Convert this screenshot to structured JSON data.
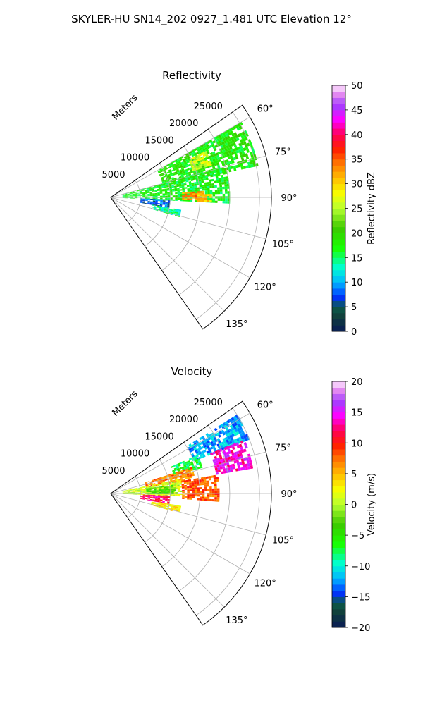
{
  "figure": {
    "title": "SKYLER-HU  SN14_202  0927_1.481 UTC Elevation 12°"
  },
  "chart_data": [
    {
      "type": "heatmap",
      "subtype": "polar-sector",
      "title": "Reflectivity",
      "radial_label": "Meters",
      "radial_ticks": [
        5000,
        10000,
        15000,
        20000,
        25000
      ],
      "radial_tick_labels": [
        "5000",
        "10000",
        "15000",
        "20000",
        "25000"
      ],
      "rmax": 27000,
      "theta_ticks": [
        60,
        75,
        90,
        105,
        120,
        135
      ],
      "theta_tick_labels": [
        "60°",
        "75°",
        "90°",
        "105°",
        "120°",
        "135°"
      ],
      "theta_range": [
        55,
        145
      ],
      "grid": true,
      "colorbar": {
        "label": "Reflectivity dBZ",
        "range": [
          0,
          50
        ],
        "ticks": [
          0,
          5,
          10,
          15,
          20,
          25,
          30,
          35,
          40,
          45,
          50
        ],
        "tick_labels": [
          "0",
          "5",
          "10",
          "15",
          "20",
          "25",
          "30",
          "35",
          "40",
          "45",
          "50"
        ]
      },
      "echo_regions": [
        {
          "az_from": 60,
          "az_to": 78,
          "r_from": 9000,
          "r_to": 25000,
          "value": 18
        },
        {
          "az_from": 64,
          "az_to": 72,
          "r_from": 14500,
          "r_to": 17500,
          "value": 26
        },
        {
          "az_from": 75,
          "az_to": 92,
          "r_from": 2000,
          "r_to": 20000,
          "value": 17
        },
        {
          "az_from": 86,
          "az_to": 91,
          "r_from": 12000,
          "r_to": 15500,
          "value": 33
        },
        {
          "az_from": 88,
          "az_to": 92,
          "r_from": 14500,
          "r_to": 17000,
          "value": 30
        },
        {
          "az_from": 92,
          "az_to": 100,
          "r_from": 5000,
          "r_to": 10000,
          "value": 8
        },
        {
          "az_from": 100,
          "az_to": 106,
          "r_from": 7000,
          "r_to": 12000,
          "value": 14
        }
      ]
    },
    {
      "type": "heatmap",
      "subtype": "polar-sector",
      "title": "Velocity",
      "radial_label": "Meters",
      "radial_ticks": [
        5000,
        10000,
        15000,
        20000,
        25000
      ],
      "radial_tick_labels": [
        "5000",
        "10000",
        "15000",
        "20000",
        "25000"
      ],
      "rmax": 27000,
      "theta_ticks": [
        60,
        75,
        90,
        105,
        120,
        135
      ],
      "theta_tick_labels": [
        "60°",
        "75°",
        "90°",
        "105°",
        "120°",
        "135°"
      ],
      "theta_range": [
        55,
        145
      ],
      "grid": true,
      "colorbar": {
        "label": "Velocity (m/s)",
        "range": [
          -20,
          20
        ],
        "ticks": [
          -20,
          -15,
          -10,
          -5,
          0,
          5,
          10,
          15,
          20
        ],
        "tick_labels": [
          "−20",
          "−15",
          "−10",
          "−5",
          "0",
          "5",
          "10",
          "15",
          "20"
        ]
      },
      "echo_regions": [
        {
          "az_from": 58,
          "az_to": 68,
          "r_from": 15000,
          "r_to": 25000,
          "value": -12
        },
        {
          "az_from": 66,
          "az_to": 74,
          "r_from": 11000,
          "r_to": 16000,
          "value": -7
        },
        {
          "az_from": 68,
          "az_to": 80,
          "r_from": 18000,
          "r_to": 24000,
          "value": 14
        },
        {
          "az_from": 72,
          "az_to": 80,
          "r_from": 6000,
          "r_to": 14000,
          "value": 7
        },
        {
          "az_from": 78,
          "az_to": 92,
          "r_from": 2000,
          "r_to": 12000,
          "value": 1
        },
        {
          "az_from": 82,
          "az_to": 90,
          "r_from": 6000,
          "r_to": 11000,
          "value": -3
        },
        {
          "az_from": 80,
          "az_to": 94,
          "r_from": 12000,
          "r_to": 18000,
          "value": 8
        },
        {
          "az_from": 92,
          "az_to": 100,
          "r_from": 5000,
          "r_to": 10000,
          "value": 12
        },
        {
          "az_from": 100,
          "az_to": 106,
          "r_from": 7000,
          "r_to": 12000,
          "value": 3
        }
      ]
    }
  ]
}
